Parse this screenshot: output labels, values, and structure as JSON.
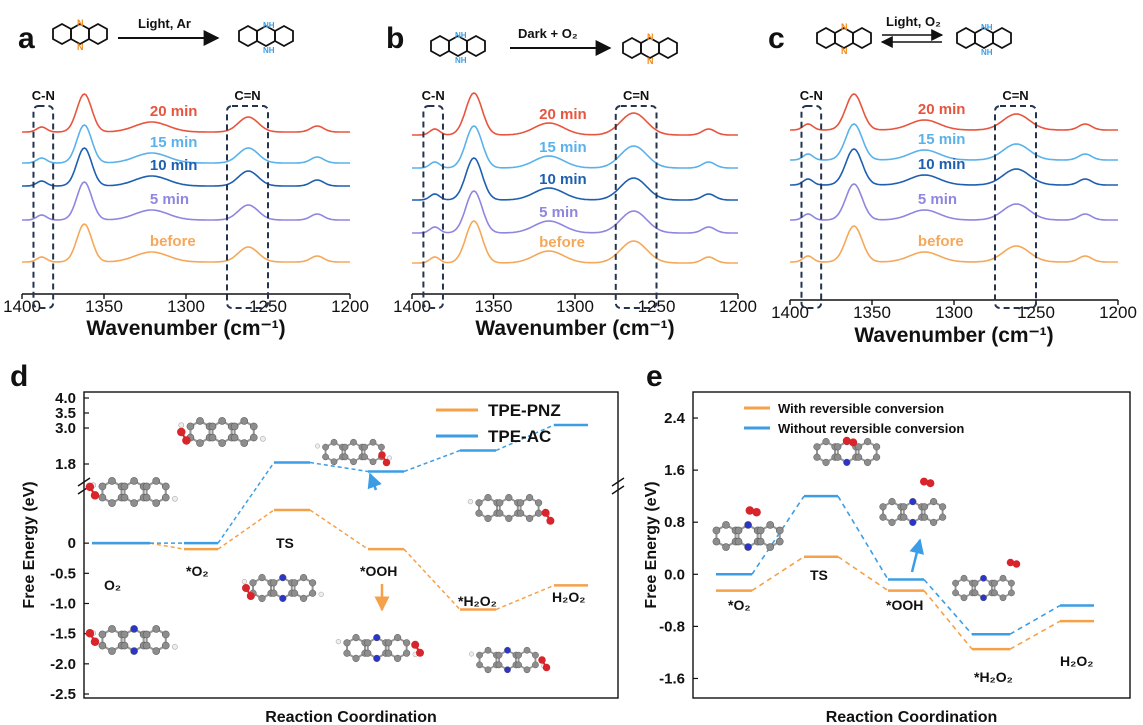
{
  "panels": {
    "a": {
      "label": "a",
      "reaction": "Light, Ar"
    },
    "b": {
      "label": "b",
      "reaction": "Dark + O₂"
    },
    "c": {
      "label": "c",
      "reaction": "Light, O₂"
    },
    "d": {
      "label": "d"
    },
    "e": {
      "label": "e"
    }
  },
  "colors": {
    "20 min": "#e8553e",
    "15 min": "#5bb2ea",
    "10 min": "#1f5fb0",
    "5 min": "#8f86e0",
    "before": "#f5a85a",
    "tpe_pnz": "#f5a14a",
    "tpe_ac": "#3b9de6",
    "box": "#24344f"
  },
  "chart_data": [
    {
      "type": "line",
      "panel": "a",
      "x_ticks": [
        "1400",
        "1350",
        "1300",
        "1250",
        "1200"
      ],
      "xlim": [
        1400,
        1200
      ],
      "xlabel": "Wavenumber (cm⁻¹)",
      "series": [
        {
          "name": "20 min"
        },
        {
          "name": "15 min"
        },
        {
          "name": "10 min"
        },
        {
          "name": "5 min"
        },
        {
          "name": "before"
        }
      ],
      "annotations": [
        "C-N",
        "C=N"
      ]
    },
    {
      "type": "line",
      "panel": "b",
      "x_ticks": [
        "1400",
        "1350",
        "1300",
        "1250",
        "1200"
      ],
      "xlim": [
        1400,
        1200
      ],
      "xlabel": "Wavenumber (cm⁻¹)",
      "series": [
        {
          "name": "20 min"
        },
        {
          "name": "15 min"
        },
        {
          "name": "10 min"
        },
        {
          "name": "5 min"
        },
        {
          "name": "before"
        }
      ],
      "annotations": [
        "C-N",
        "C=N"
      ]
    },
    {
      "type": "line",
      "panel": "c",
      "x_ticks": [
        "1400",
        "1350",
        "1300",
        "1250",
        "1200"
      ],
      "xlim": [
        1400,
        1200
      ],
      "xlabel": "Wavenumber (cm⁻¹)",
      "series": [
        {
          "name": "20 min"
        },
        {
          "name": "15 min"
        },
        {
          "name": "10 min"
        },
        {
          "name": "5 min"
        },
        {
          "name": "before"
        }
      ],
      "annotations": [
        "C-N",
        "C=N"
      ]
    },
    {
      "type": "line",
      "panel": "d",
      "ylabel": "Free Energy (eV)",
      "xlabel": "Reaction Coordination",
      "y_ticks": [
        "4.0",
        "3.5",
        "3.0",
        "1.8",
        "0",
        "-0.5",
        "-1.0",
        "-1.5",
        "-2.0",
        "-2.5"
      ],
      "categories": [
        "O₂",
        "*O₂",
        "TS",
        "*OOH",
        "*H₂O₂",
        "H₂O₂"
      ],
      "series": [
        {
          "name": "TPE-PNZ",
          "values": [
            0,
            -0.1,
            0.55,
            -0.1,
            -1.1,
            -0.7
          ]
        },
        {
          "name": "TPE-AC",
          "values": [
            0,
            0,
            1.85,
            1.55,
            2.25,
            3.1
          ]
        }
      ]
    },
    {
      "type": "line",
      "panel": "e",
      "ylabel": "Free Energy (eV)",
      "xlabel": "Reaction Coordination",
      "y_ticks": [
        "2.4",
        "1.6",
        "0.8",
        "0.0",
        "-0.8",
        "-1.6"
      ],
      "ylim": [
        -1.9,
        2.8
      ],
      "categories": [
        "*O₂",
        "TS",
        "*OOH",
        "*H₂O₂",
        "H₂O₂"
      ],
      "series": [
        {
          "name": "With reversible conversion",
          "values": [
            -0.25,
            0.27,
            -0.25,
            -1.15,
            -0.72
          ]
        },
        {
          "name": "Without reversible conversion",
          "values": [
            0.0,
            1.2,
            -0.08,
            -0.92,
            -0.48
          ]
        }
      ]
    }
  ]
}
